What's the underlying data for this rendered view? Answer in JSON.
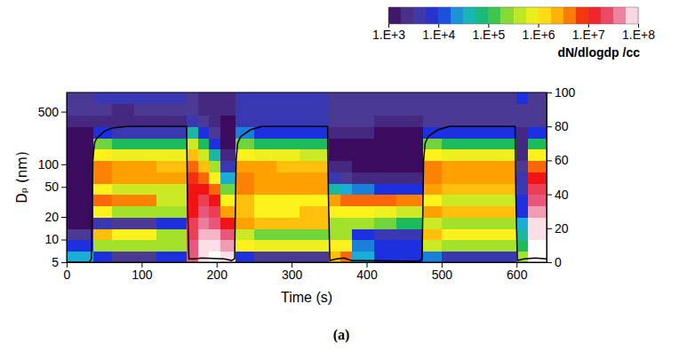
{
  "chart_data": {
    "type": "heatmap",
    "xlabel": "Time (s)",
    "ylabel": "Dₚ (nm)",
    "caption": "(a)",
    "log": "y",
    "xlim": [
      0,
      640
    ],
    "xticks": [
      0,
      100,
      200,
      300,
      400,
      500,
      600
    ],
    "ylim": [
      5,
      900
    ],
    "yticks": [
      5,
      10,
      20,
      50,
      100,
      500
    ],
    "y2lim": [
      0,
      100
    ],
    "y2ticks": [
      0,
      20,
      40,
      60,
      80,
      100
    ],
    "x_edges": [
      0,
      35,
      60,
      90,
      120,
      160,
      175,
      190,
      205,
      225,
      250,
      280,
      310,
      350,
      365,
      380,
      410,
      440,
      475,
      500,
      530,
      560,
      600,
      615,
      640
    ],
    "y_edges": [
      5,
      7,
      10,
      14,
      20,
      28,
      40,
      56,
      80,
      112,
      160,
      225,
      320,
      450,
      640,
      900
    ],
    "values": [
      [
        30000.0,
        10000.0,
        3000.0,
        1000.0,
        1000.0,
        1000.0,
        1000.0,
        1000.0,
        1000.0,
        1000.0,
        1000.0,
        1000.0,
        2000.0,
        3000.0,
        3000.0
      ],
      [
        10000.0,
        300000.0,
        2000000.0,
        5000.0,
        1000000.0,
        5000000.0,
        1000000.0,
        4000000.0,
        4000000.0,
        1000000.0,
        200000.0,
        10000.0,
        2000.0,
        3000.0,
        5000.0
      ],
      [
        3000.0,
        300000.0,
        1000000.0,
        3000.0,
        300000.0,
        4000000.0,
        500000.0,
        3000000.0,
        3000000.0,
        800000.0,
        100000.0,
        5000.0,
        2000.0,
        2000.0,
        5000.0
      ],
      [
        3000.0,
        300000.0,
        1000000.0,
        3000.0,
        300000.0,
        4000000.0,
        500000.0,
        3000000.0,
        3000000.0,
        800000.0,
        100000.0,
        5000.0,
        2000.0,
        3000.0,
        5000.0
      ],
      [
        10000.0,
        300000.0,
        300000.0,
        10000.0,
        300000.0,
        500000.0,
        500000.0,
        3000000.0,
        2000000.0,
        800000.0,
        100000.0,
        5000.0,
        2000.0,
        3000.0,
        5000.0
      ],
      [
        30000000.0,
        30000000.0,
        20000000.0,
        20000000.0,
        10000000.0,
        10000000.0,
        10000000.0,
        8000000.0,
        5000000.0,
        2000000.0,
        500000.0,
        50000.0,
        5000.0,
        3000.0,
        3000.0
      ],
      [
        80000000.0,
        80000000.0,
        60000000.0,
        40000000.0,
        30000000.0,
        20000000.0,
        10000000.0,
        5000000.0,
        2000000.0,
        500000.0,
        100000.0,
        10000.0,
        3000.0,
        2000.0,
        2000.0
      ],
      [
        100000000.0,
        80000000.0,
        60000000.0,
        30000000.0,
        20000000.0,
        10000000.0,
        5000000.0,
        1000000.0,
        300000.0,
        50000.0,
        10000.0,
        3000.0,
        2000.0,
        2000.0,
        2000.0
      ],
      [
        80000000.0,
        50000000.0,
        30000000.0,
        10000000.0,
        3000000.0,
        1000000.0,
        200000.0,
        30000.0,
        5000.0,
        2000.0,
        1000.0,
        1000.0,
        1000.0,
        2000.0,
        2000.0
      ],
      [
        10000.0,
        1000000.0,
        500000.0,
        3000000.0,
        2000000.0,
        2000000.0,
        4000000.0,
        4000000.0,
        3000000.0,
        1000000.0,
        200000.0,
        20000.0,
        5000.0,
        5000.0,
        5000.0
      ],
      [
        3000.0,
        800000.0,
        200000.0,
        2000000.0,
        1000000.0,
        1000000.0,
        3000000.0,
        3000000.0,
        3000000.0,
        800000.0,
        100000.0,
        10000.0,
        5000.0,
        5000.0,
        5000.0
      ],
      [
        3000.0,
        800000.0,
        200000.0,
        2000000.0,
        1000000.0,
        1000000.0,
        3000000.0,
        3000000.0,
        2000000.0,
        800000.0,
        100000.0,
        10000.0,
        5000.0,
        5000.0,
        5000.0
      ],
      [
        3000.0,
        800000.0,
        200000.0,
        2000000.0,
        2000000.0,
        1000000.0,
        3000000.0,
        3000000.0,
        2000000.0,
        500000.0,
        100000.0,
        10000.0,
        5000.0,
        5000.0,
        5000.0
      ],
      [
        2000000.0,
        1000000.0,
        300000.0,
        300000.0,
        1000000.0,
        3000000.0,
        50000.0,
        5000.0,
        2000.0,
        1000.0,
        1000.0,
        2000.0,
        3000.0,
        3000.0,
        3000.0
      ],
      [
        5000000.0,
        1000000.0,
        300000.0,
        300000.0,
        1000000.0,
        5000000.0,
        30000.0,
        3000.0,
        2000.0,
        1000.0,
        1000.0,
        2000.0,
        3000.0,
        3000.0,
        3000.0
      ],
      [
        30000.0,
        20000.0,
        10000.0,
        300000.0,
        1000000.0,
        5000000.0,
        20000.0,
        2000.0,
        1000.0,
        1000.0,
        1000.0,
        2000.0,
        3000.0,
        3000.0,
        3000.0
      ],
      [
        10000.0,
        10000.0,
        5000.0,
        200000.0,
        800000.0,
        5000000.0,
        10000.0,
        2000.0,
        1000.0,
        1000.0,
        1000.0,
        1000.0,
        2000.0,
        3000.0,
        3000.0
      ],
      [
        10000.0,
        10000.0,
        5000.0,
        100000.0,
        500000.0,
        4000000.0,
        10000.0,
        2000.0,
        1000.0,
        1000.0,
        1000.0,
        1000.0,
        2000.0,
        3000.0,
        3000.0
      ],
      [
        20000.0,
        500000.0,
        2000000.0,
        500000.0,
        3000000.0,
        1000000.0,
        3000000.0,
        4000000.0,
        4000000.0,
        1000000.0,
        200000.0,
        10000.0,
        3000.0,
        3000.0,
        3000.0
      ],
      [
        5000.0,
        300000.0,
        1000000.0,
        300000.0,
        2000000.0,
        500000.0,
        2000000.0,
        3000000.0,
        3000000.0,
        800000.0,
        100000.0,
        10000.0,
        3000.0,
        3000.0,
        3000.0
      ],
      [
        5000.0,
        300000.0,
        1000000.0,
        300000.0,
        2000000.0,
        500000.0,
        2000000.0,
        3000000.0,
        3000000.0,
        800000.0,
        100000.0,
        10000.0,
        3000.0,
        3000.0,
        3000.0
      ],
      [
        5000.0,
        300000.0,
        1000000.0,
        300000.0,
        2000000.0,
        500000.0,
        2000000.0,
        3000000.0,
        3000000.0,
        800000.0,
        100000.0,
        10000.0,
        3000.0,
        3000.0,
        3000.0
      ],
      [
        300000.0,
        100000.0,
        50000.0,
        30000.0,
        10000.0,
        10000.0,
        5000.0,
        5000.0,
        3000.0,
        2000.0,
        2000.0,
        2000.0,
        3000.0,
        3000.0,
        10000.0
      ],
      [
        100000000.0,
        100000000.0,
        80000000.0,
        80000000.0,
        50000000.0,
        30000000.0,
        20000000.0,
        10000000.0,
        5000000.0,
        1000000.0,
        100000.0,
        10000.0,
        3000.0,
        3000.0,
        3000.0
      ]
    ],
    "colorbar": {
      "label": "dN/dlogdp /cc",
      "range": [
        1000,
        100000000
      ],
      "ticks": [
        {
          "value": 1000,
          "label": "1.E+3"
        },
        {
          "value": 10000,
          "label": "1.E+4"
        },
        {
          "value": 100000,
          "label": "1.E+5"
        },
        {
          "value": 1000000,
          "label": "1.E+6"
        },
        {
          "value": 10000000,
          "label": "1.E+7"
        },
        {
          "value": 100000000,
          "label": "1.E+8"
        }
      ],
      "colors": [
        "#3a0b5e",
        "#4d3b96",
        "#1c30e0",
        "#19b4d4",
        "#1cbc5c",
        "#a8e428",
        "#fff21c",
        "#ff9e00",
        "#f21414",
        "#e85a80",
        "#ffffff"
      ]
    },
    "series": [
      {
        "type": "line",
        "axis": "y2",
        "color": "#000000",
        "x": [
          0,
          30,
          33,
          35,
          37,
          40,
          50,
          60,
          80,
          160,
          161,
          163,
          170,
          180,
          210,
          220,
          224,
          226,
          228,
          232,
          245,
          260,
          348,
          349,
          351,
          360,
          370,
          380,
          470,
          474,
          476,
          478,
          482,
          495,
          510,
          598,
          599,
          601,
          610,
          625,
          640
        ],
        "values": [
          0,
          0,
          2,
          60,
          70,
          73,
          77,
          79,
          80,
          80,
          40,
          2,
          2,
          2.5,
          2,
          1,
          2,
          60,
          70,
          74,
          78,
          80,
          80,
          40,
          1,
          2,
          2.5,
          1,
          0.5,
          2,
          60,
          70,
          74,
          78,
          80,
          80,
          40,
          1,
          2,
          2.5,
          2
        ]
      }
    ]
  }
}
